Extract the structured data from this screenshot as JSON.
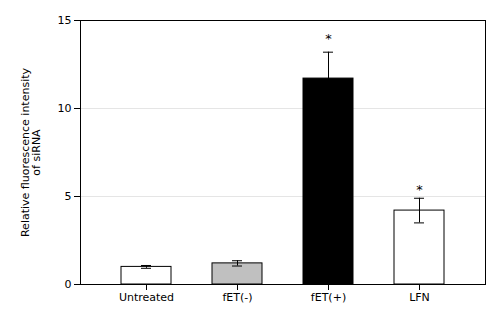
{
  "chart_data": {
    "type": "bar",
    "categories": [
      "Untreated",
      "fET(-)",
      "fET(+)",
      "LFN"
    ],
    "values": [
      1.0,
      1.2,
      11.7,
      4.2
    ],
    "errors": [
      0.08,
      0.15,
      1.5,
      0.7
    ],
    "colors": [
      "white",
      "#c0c0c0",
      "black",
      "white"
    ],
    "ylabel": "Relative fluorescence intensity\nof siRNA",
    "ylim": [
      0,
      15
    ],
    "yticks": [
      0,
      5,
      10,
      15
    ],
    "grid": true,
    "annotations": [
      {
        "text": "*",
        "x": "fET(+)",
        "y": 13.7
      },
      {
        "text": "*",
        "x": "LFN",
        "y": 5.15
      }
    ]
  }
}
